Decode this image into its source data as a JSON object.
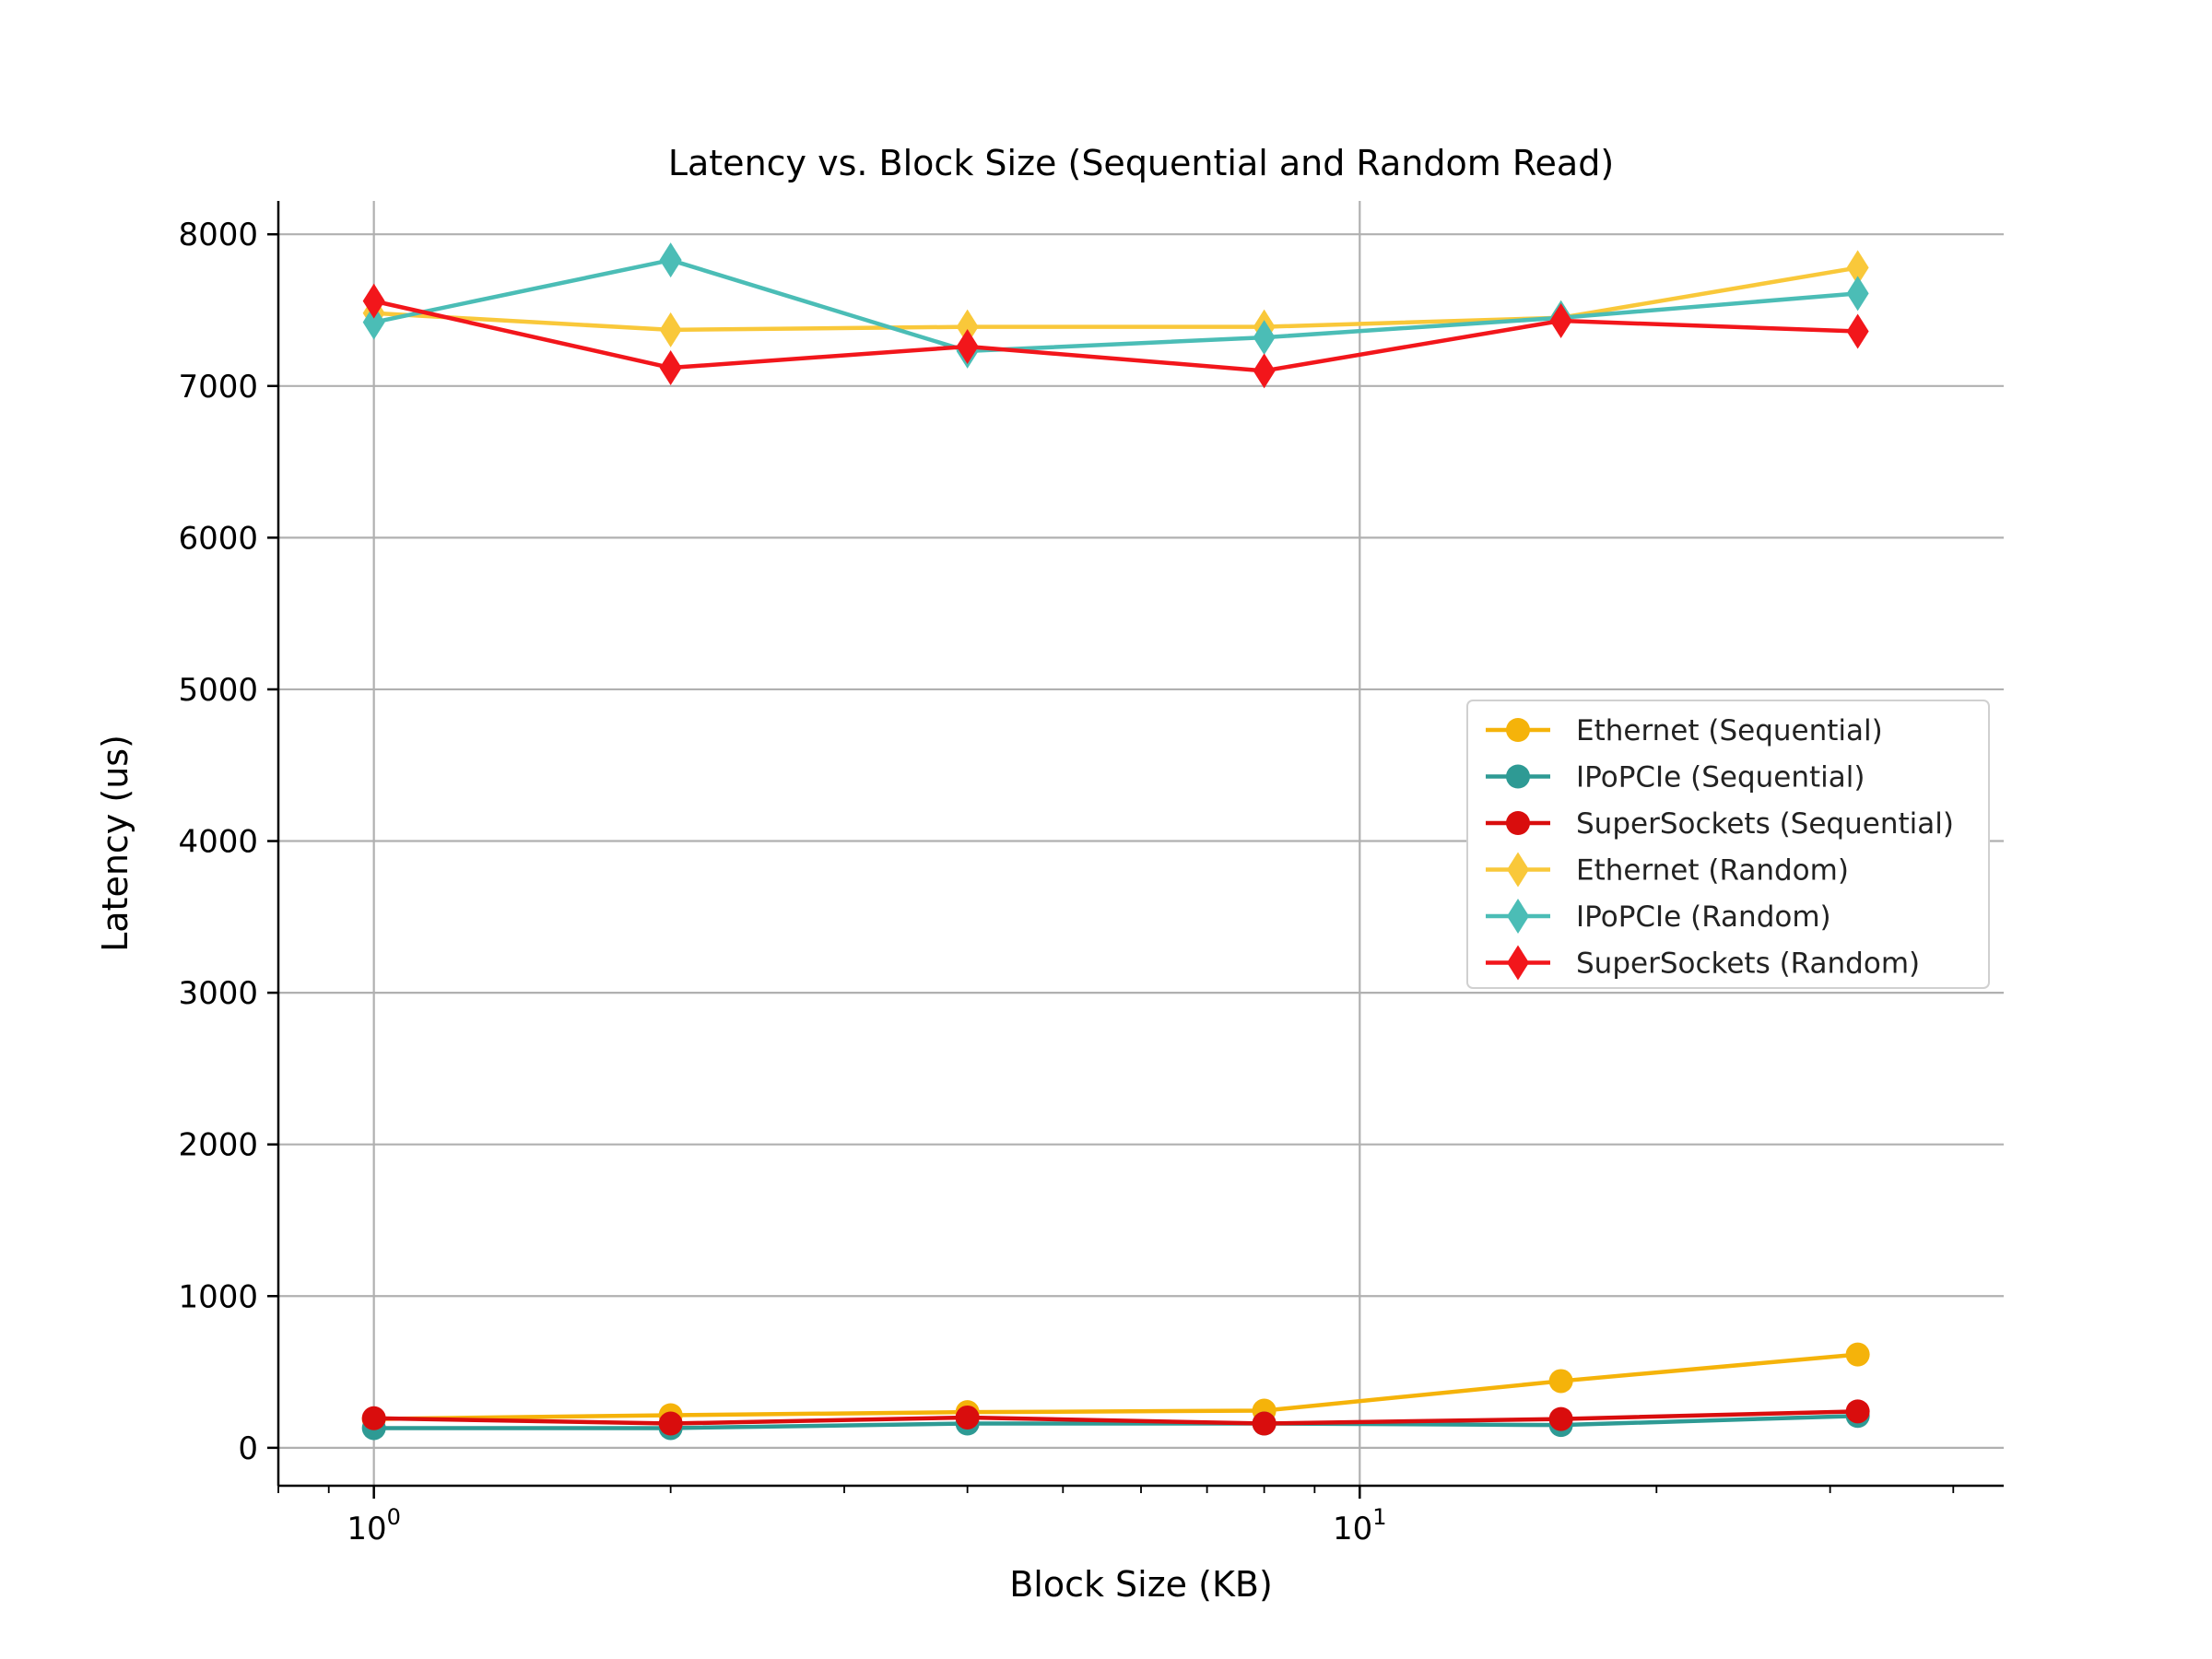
{
  "chart_data": {
    "type": "line",
    "title": "Latency vs. Block Size (Sequential and Random Read)",
    "xlabel": "Block Size (KB)",
    "ylabel": "Latency (us)",
    "xscale": "log",
    "xlim": [
      0.8,
      45
    ],
    "ylim": [
      -250,
      8220
    ],
    "x": [
      1,
      2,
      4,
      8,
      16,
      32
    ],
    "xticks": [
      {
        "value": 1,
        "base": "10",
        "exp": "0"
      },
      {
        "value": 10,
        "base": "10",
        "exp": "1"
      }
    ],
    "yticks": [
      0,
      1000,
      2000,
      3000,
      4000,
      5000,
      6000,
      7000,
      8000
    ],
    "grid": true,
    "legend_position": "center-right",
    "series": [
      {
        "name": "Ethernet (Sequential)",
        "color": "#F5B30A",
        "marker": "circle",
        "values": [
          190,
          215,
          235,
          245,
          440,
          615
        ]
      },
      {
        "name": "IPoPCIe (Sequential)",
        "color": "#2E9A94",
        "marker": "circle",
        "values": [
          130,
          130,
          160,
          160,
          150,
          210
        ]
      },
      {
        "name": "SuperSockets (Sequential)",
        "color": "#D90D0D",
        "marker": "circle",
        "values": [
          195,
          160,
          200,
          160,
          190,
          240
        ]
      },
      {
        "name": "Ethernet (Random)",
        "color": "#F9C83A",
        "marker": "diamond",
        "values": [
          7480,
          7370,
          7390,
          7390,
          7450,
          7780
        ]
      },
      {
        "name": "IPoPCIe (Random)",
        "color": "#4BBDB6",
        "marker": "diamond",
        "values": [
          7420,
          7830,
          7230,
          7320,
          7450,
          7610
        ]
      },
      {
        "name": "SuperSockets (Random)",
        "color": "#F2161B",
        "marker": "diamond",
        "values": [
          7560,
          7120,
          7260,
          7100,
          7430,
          7360
        ]
      }
    ]
  }
}
